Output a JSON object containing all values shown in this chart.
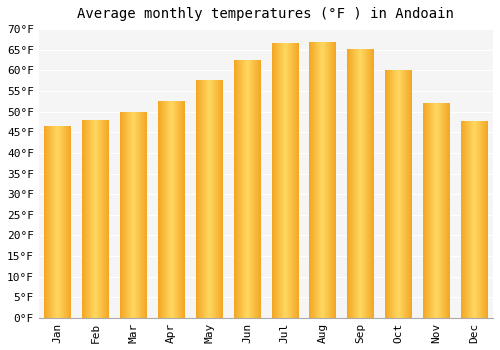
{
  "title": "Average monthly temperatures (°F ) in Andoain",
  "months": [
    "Jan",
    "Feb",
    "Mar",
    "Apr",
    "May",
    "Jun",
    "Jul",
    "Aug",
    "Sep",
    "Oct",
    "Nov",
    "Dec"
  ],
  "values": [
    46.4,
    47.8,
    49.8,
    52.5,
    57.5,
    62.5,
    66.5,
    66.7,
    65.0,
    60.0,
    52.0,
    47.5
  ],
  "bar_color_left": "#F5A623",
  "bar_color_center": "#FFD070",
  "bar_color_right": "#F5A623",
  "ylim": [
    0,
    70
  ],
  "ytick_step": 5,
  "background_color": "#ffffff",
  "plot_bg_color": "#f5f5f5",
  "grid_color": "#ffffff",
  "title_fontsize": 10,
  "tick_fontsize": 8,
  "font_family": "monospace"
}
